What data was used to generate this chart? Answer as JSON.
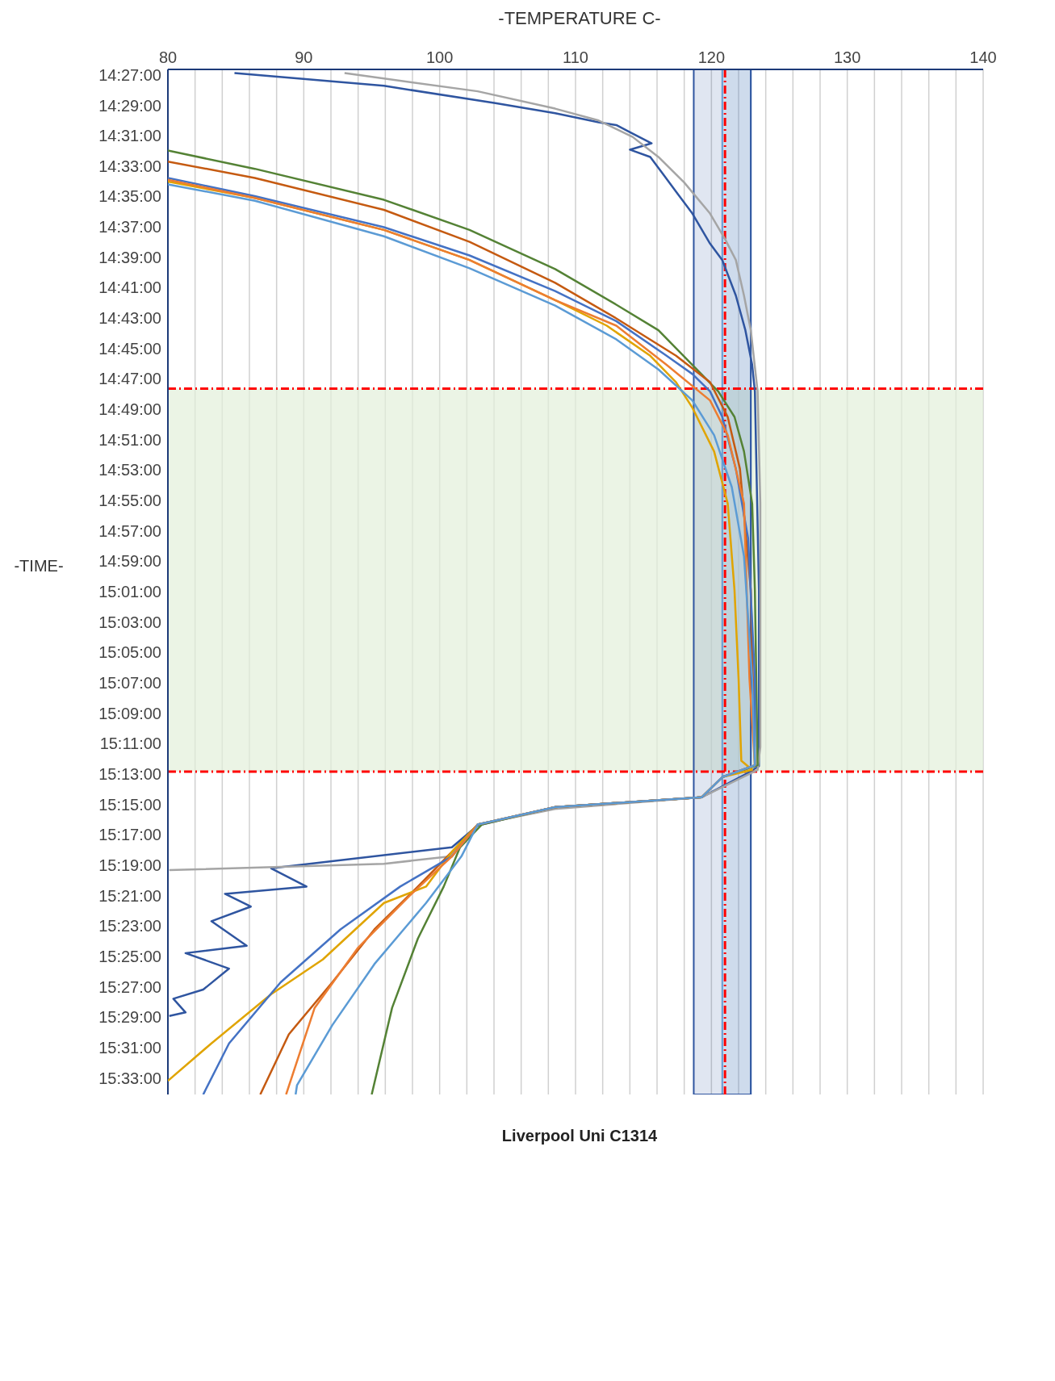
{
  "chart_data": {
    "type": "line",
    "xlabel": "-TEMPERATURE  C-",
    "ylabel": "-TIME-",
    "xlim": [
      80,
      140
    ],
    "xticks": [
      80,
      {
        "value": 82,
        "label": null
      },
      {
        "value": 84,
        "label": null
      },
      {
        "value": 86,
        "label": null
      },
      {
        "value": 88,
        "label": null
      },
      90,
      {
        "value": 92,
        "label": null
      },
      {
        "value": 94,
        "label": null
      },
      {
        "value": 96,
        "label": null
      },
      {
        "value": 98,
        "label": null
      },
      100,
      {
        "value": 102,
        "label": null
      },
      {
        "value": 104,
        "label": null
      },
      {
        "value": 106,
        "label": null
      },
      {
        "value": 108,
        "label": null
      },
      110,
      {
        "value": 112,
        "label": null
      },
      {
        "value": 114,
        "label": null
      },
      {
        "value": 116,
        "label": null
      },
      {
        "value": 118,
        "label": null
      },
      120,
      {
        "value": 122,
        "label": null
      },
      {
        "value": 124,
        "label": null
      },
      {
        "value": 126,
        "label": null
      },
      {
        "value": 128,
        "label": null
      },
      130,
      {
        "value": 132,
        "label": null
      },
      {
        "value": 134,
        "label": null
      },
      {
        "value": 136,
        "label": null
      },
      {
        "value": 138,
        "label": null
      },
      140
    ],
    "ylim": [
      15.568,
      14.444
    ],
    "yticks": [
      {
        "value": 14.45,
        "label": "14:27:00"
      },
      {
        "value": 14.4833,
        "label": "14:29:00"
      },
      {
        "value": 14.5167,
        "label": "14:31:00"
      },
      {
        "value": 14.55,
        "label": "14:33:00"
      },
      {
        "value": 14.5833,
        "label": "14:35:00"
      },
      {
        "value": 14.6167,
        "label": "14:37:00"
      },
      {
        "value": 14.65,
        "label": "14:39:00"
      },
      {
        "value": 14.6833,
        "label": "14:41:00"
      },
      {
        "value": 14.7167,
        "label": "14:43:00"
      },
      {
        "value": 14.75,
        "label": "14:45:00"
      },
      {
        "value": 14.7833,
        "label": "14:47:00"
      },
      {
        "value": 14.8167,
        "label": "14:49:00"
      },
      {
        "value": 14.85,
        "label": "14:51:00"
      },
      {
        "value": 14.8833,
        "label": "14:53:00"
      },
      {
        "value": 14.9167,
        "label": "14:55:00"
      },
      {
        "value": 14.95,
        "label": "14:57:00"
      },
      {
        "value": 14.9833,
        "label": "14:59:00"
      },
      {
        "value": 15.0167,
        "label": "15:01:00"
      },
      {
        "value": 15.05,
        "label": "15:03:00"
      },
      {
        "value": 15.0833,
        "label": "15:05:00"
      },
      {
        "value": 15.1167,
        "label": "15:07:00"
      },
      {
        "value": 15.15,
        "label": "15:09:00"
      },
      {
        "value": 15.1833,
        "label": "15:11:00"
      },
      {
        "value": 15.2167,
        "label": "15:13:00"
      },
      {
        "value": 15.25,
        "label": "15:15:00"
      },
      {
        "value": 15.2833,
        "label": "15:17:00"
      },
      {
        "value": 15.3167,
        "label": "15:19:00"
      },
      {
        "value": 15.35,
        "label": "15:21:00"
      },
      {
        "value": 15.3833,
        "label": "15:23:00"
      },
      {
        "value": 15.4167,
        "label": "15:25:00"
      },
      {
        "value": 15.45,
        "label": "15:27:00"
      },
      {
        "value": 15.4833,
        "label": "15:29:00"
      },
      {
        "value": 15.5167,
        "label": "15:31:00"
      },
      {
        "value": 15.55,
        "label": "15:33:00"
      }
    ],
    "grid": "x",
    "legend": false,
    "marker": "none",
    "line_style": "solid",
    "series": [
      {
        "color": "#2f55a0",
        "x": [
          84.9,
          95.9,
          104.1,
          108.5,
          111.7,
          113.0,
          113.9,
          115.6,
          114.0,
          115.5,
          116.4,
          117.4,
          118.6,
          119.9,
          120.8,
          121.8,
          122.5,
          123.0,
          123.2,
          123.5,
          123.5,
          122.5,
          119.3,
          108.5,
          102.8,
          100.9,
          87.6,
          90.2,
          84.2,
          86.1,
          83.2,
          85.8,
          81.3,
          84.5,
          82.6,
          80.4,
          81.3,
          80.1
        ],
        "values": [
          14.448,
          14.462,
          14.481,
          14.492,
          14.502,
          14.505,
          14.512,
          14.525,
          14.532,
          14.54,
          14.558,
          14.578,
          14.602,
          14.635,
          14.653,
          14.692,
          14.73,
          14.768,
          14.797,
          15.015,
          15.208,
          15.217,
          15.242,
          15.253,
          15.273,
          15.297,
          15.32,
          15.34,
          15.348,
          15.362,
          15.378,
          15.405,
          15.413,
          15.43,
          15.453,
          15.463,
          15.478,
          15.482
        ]
      },
      {
        "color": "#a5a5a5",
        "x": [
          93.0,
          102.8,
          108.5,
          111.7,
          114.2,
          116.1,
          118.0,
          119.9,
          121.0,
          121.8,
          122.4,
          122.9,
          123.4,
          123.6,
          123.6,
          123.4,
          119.3,
          108.5,
          102.8,
          100.8,
          95.9,
          80.1
        ],
        "values": [
          14.448,
          14.468,
          14.487,
          14.5,
          14.518,
          14.54,
          14.568,
          14.602,
          14.63,
          14.653,
          14.692,
          14.73,
          14.797,
          14.92,
          15.187,
          15.212,
          15.242,
          15.255,
          15.272,
          15.307,
          15.315,
          15.322
        ]
      },
      {
        "color": "#548235",
        "x": [
          80,
          86.4,
          95.9,
          102.2,
          108.5,
          113.0,
          116.1,
          118.6,
          120.5,
          121.7,
          122.4,
          123.0,
          123.2,
          123.4,
          120.8,
          119.3,
          108.5,
          103.1,
          101.5,
          100.3,
          98.4,
          96.5,
          95.0
        ],
        "values": [
          14.533,
          14.553,
          14.587,
          14.62,
          14.663,
          14.702,
          14.73,
          14.768,
          14.797,
          14.825,
          14.863,
          14.92,
          15.015,
          15.207,
          15.22,
          15.242,
          15.253,
          15.272,
          15.297,
          15.34,
          15.397,
          15.473,
          15.568
        ]
      },
      {
        "color": "#c55a11",
        "x": [
          80,
          86.4,
          95.9,
          102.2,
          108.5,
          113.0,
          117.4,
          119.9,
          121.2,
          122.1,
          122.9,
          123.2,
          120.8,
          119.3,
          108.5,
          102.8,
          100.9,
          98.4,
          95.2,
          92.1,
          88.9,
          86.8
        ],
        "values": [
          14.545,
          14.563,
          14.598,
          14.633,
          14.678,
          14.717,
          14.758,
          14.787,
          14.825,
          14.882,
          15.015,
          15.207,
          15.22,
          15.242,
          15.253,
          15.272,
          15.302,
          15.34,
          15.387,
          15.445,
          15.502,
          15.568
        ]
      },
      {
        "color": "#e0a400",
        "x": [
          80,
          86.4,
          95.9,
          102.2,
          108.5,
          112.3,
          115.5,
          117.4,
          118.6,
          120.2,
          121.2,
          121.7,
          122.0,
          122.2,
          123.0,
          120.8,
          119.3,
          108.5,
          102.8,
          100.9,
          99.0,
          95.9,
          91.4,
          87.6,
          83.2,
          80
        ],
        "values": [
          14.567,
          14.585,
          14.62,
          14.653,
          14.697,
          14.725,
          14.758,
          14.787,
          14.815,
          14.863,
          14.92,
          15.015,
          15.112,
          15.202,
          15.212,
          15.22,
          15.242,
          15.253,
          15.272,
          15.302,
          15.34,
          15.358,
          15.42,
          15.458,
          15.512,
          15.553
        ]
      },
      {
        "color": "#4472c4",
        "x": [
          80,
          86.4,
          95.9,
          102.2,
          108.5,
          113.0,
          116.7,
          118.6,
          119.9,
          120.8,
          121.8,
          122.7,
          123.2,
          123.2,
          120.8,
          119.3,
          108.5,
          102.8,
          100.9,
          97.1,
          92.7,
          88.3,
          84.5,
          82.6
        ],
        "values": [
          14.563,
          14.583,
          14.617,
          14.648,
          14.687,
          14.72,
          14.758,
          14.778,
          14.797,
          14.825,
          14.882,
          14.958,
          15.112,
          15.207,
          15.22,
          15.242,
          15.253,
          15.272,
          15.307,
          15.34,
          15.387,
          15.445,
          15.512,
          15.568
        ]
      },
      {
        "color": "#ed7d31",
        "x": [
          80,
          86.4,
          95.9,
          102.2,
          108.5,
          113.0,
          116.7,
          119.9,
          121.2,
          122.4,
          122.8,
          123.2,
          120.8,
          119.3,
          108.5,
          102.8,
          100.9,
          97.8,
          94.0,
          90.8,
          88.7
        ],
        "values": [
          14.565,
          14.585,
          14.62,
          14.653,
          14.697,
          14.725,
          14.768,
          14.807,
          14.845,
          14.92,
          15.112,
          15.207,
          15.22,
          15.242,
          15.253,
          15.272,
          15.307,
          15.35,
          15.407,
          15.473,
          15.568
        ]
      },
      {
        "color": "#5b9bd5",
        "x": [
          80,
          86.4,
          95.9,
          102.2,
          108.5,
          113.0,
          116.1,
          118.6,
          120.2,
          121.5,
          122.4,
          123.0,
          123.2,
          120.8,
          119.3,
          108.5,
          102.8,
          101.6,
          99.0,
          95.2,
          92.1,
          89.5,
          89.4
        ],
        "values": [
          14.57,
          14.588,
          14.627,
          14.662,
          14.703,
          14.74,
          14.773,
          14.807,
          14.845,
          14.902,
          14.978,
          15.112,
          15.207,
          15.22,
          15.242,
          15.253,
          15.272,
          15.307,
          15.358,
          15.425,
          15.492,
          15.558,
          15.568
        ]
      }
    ],
    "ref_lines": [
      {
        "axis": "x",
        "value": 121,
        "color": "#ff0000",
        "line_style": "dashed"
      },
      {
        "axis": "y",
        "value": 14.794,
        "color": "#ff0000",
        "line_style": "dashed"
      },
      {
        "axis": "y",
        "value": 15.214,
        "color": "#ff0000",
        "line_style": "dashed"
      }
    ],
    "bands": [
      {
        "axis": "y",
        "from": 14.794,
        "to": 15.214,
        "color": "#e2efda"
      },
      {
        "axis": "x",
        "from": 120.8,
        "to": 122.9,
        "color": "#6fa8dc"
      },
      {
        "axis": "x",
        "from": 118.7,
        "to": 122.9,
        "color": "#2f55a0"
      }
    ],
    "annotations": [
      "Liverpool Uni C1314"
    ]
  }
}
